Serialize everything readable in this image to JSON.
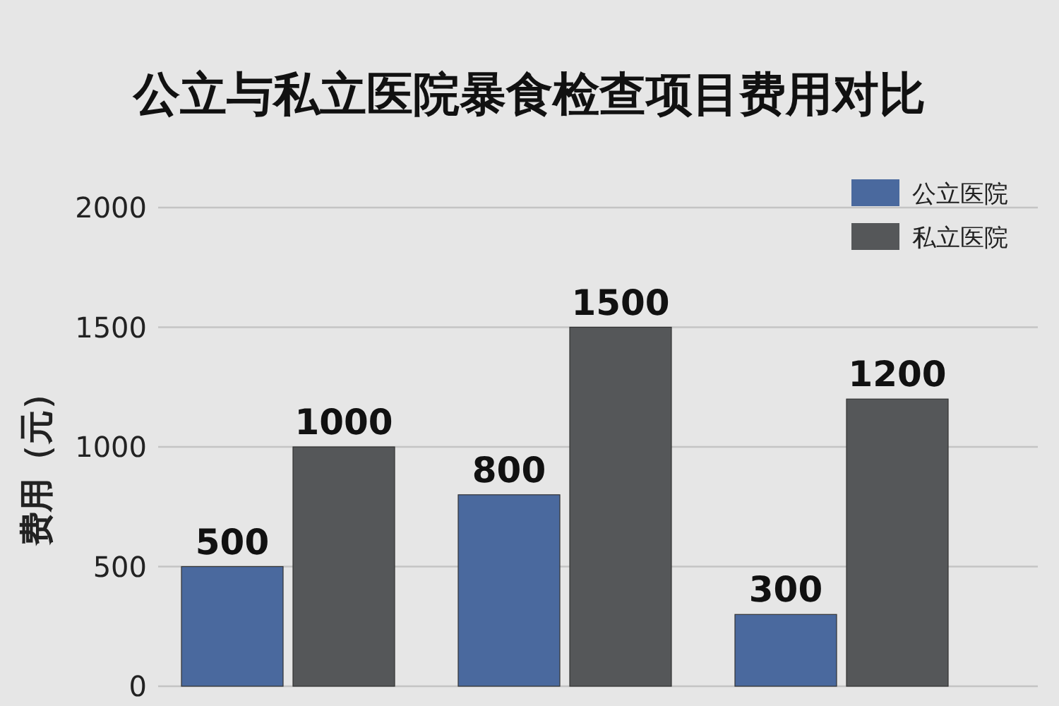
{
  "chart_data": {
    "type": "bar",
    "title": "公立与私立医院暴食检查项目费用对比",
    "ylabel": "费用（元）",
    "categories": [
      null,
      null,
      null
    ],
    "series": [
      {
        "name": "公立医院",
        "color": "#4a699e",
        "values": [
          500,
          800,
          300
        ]
      },
      {
        "name": "私立医院",
        "color": "#555759",
        "values": [
          1000,
          1500,
          1200
        ]
      }
    ],
    "data_labels": true,
    "ylim": [
      0,
      2000
    ],
    "yticks": [
      0,
      500,
      1000,
      1500,
      2000
    ],
    "grid": "y",
    "legend": "top right"
  }
}
